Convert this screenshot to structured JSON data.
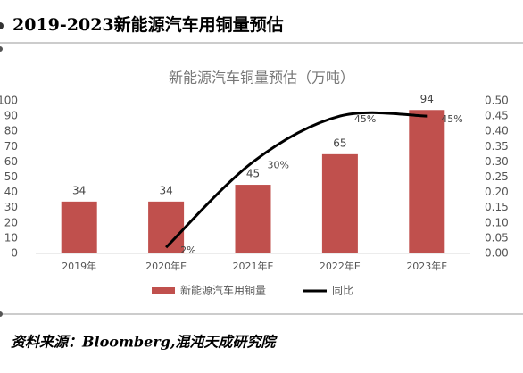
{
  "header": {
    "title": "2019-2023新能源汽车用铜量预估"
  },
  "chart_data": {
    "type": "bar",
    "title": "新能源汽车铜量预估（万吨）",
    "categories": [
      "2019年",
      "2020年E",
      "2021年E",
      "2022年E",
      "2023年E"
    ],
    "series": [
      {
        "name": "新能源汽车用铜量",
        "color": "#c0504d",
        "values": [
          34,
          34,
          45,
          65,
          94
        ]
      },
      {
        "name": "同比",
        "type": "line",
        "axis": "y2",
        "color": "#000000",
        "values": [
          null,
          0.02,
          0.3,
          0.45,
          0.45
        ],
        "value_labels": [
          null,
          "2%",
          "30%",
          "45%",
          "45%"
        ]
      }
    ],
    "ylim": [
      0,
      100
    ],
    "yticks": [
      0,
      10,
      20,
      30,
      40,
      50,
      60,
      70,
      80,
      90,
      100
    ],
    "y2lim": [
      0,
      0.5
    ],
    "y2ticks": [
      {
        "value": 0,
        "label": "0.00"
      },
      {
        "value": 0.05,
        "label": "0.05"
      },
      {
        "value": 0.1,
        "label": "0.10"
      },
      {
        "value": 0.15,
        "label": "0.15"
      },
      {
        "value": 0.2,
        "label": "0.20"
      },
      {
        "value": 0.25,
        "label": "0.25"
      },
      {
        "value": 0.3,
        "label": "0.30"
      },
      {
        "value": 0.35,
        "label": "0.35"
      },
      {
        "value": 0.4,
        "label": "0.40"
      },
      {
        "value": 0.45,
        "label": "0.45"
      },
      {
        "value": 0.5,
        "label": "0.50"
      }
    ],
    "legend": "bottom"
  },
  "footer": {
    "source": "资料来源：Bloomberg,混沌天成研究院"
  }
}
